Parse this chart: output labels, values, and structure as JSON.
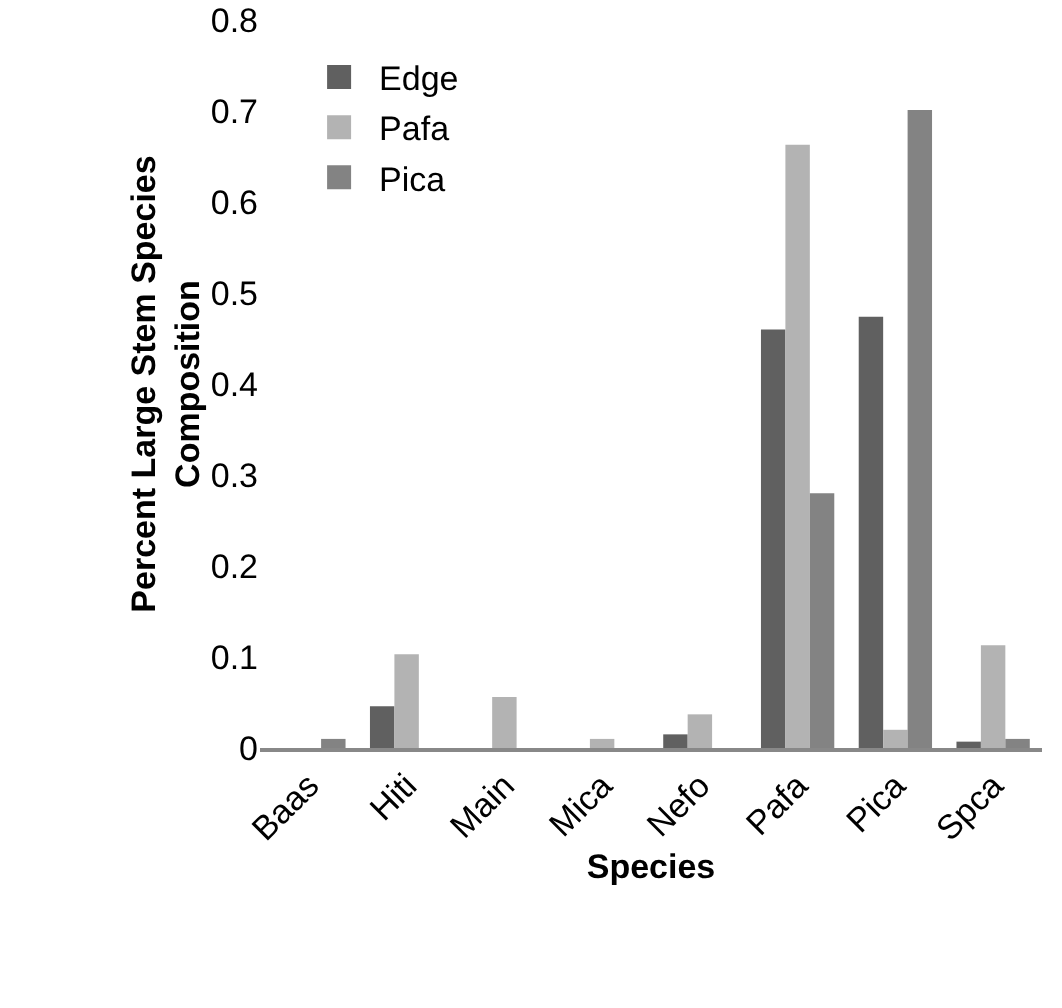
{
  "chart_data": {
    "type": "bar",
    "xlabel": "Species",
    "ylabel": "Percent Large Stem Species Composition",
    "categories": [
      "Baas",
      "Hiti",
      "Main",
      "Mica",
      "Nefo",
      "Pafa",
      "Pica",
      "Spca"
    ],
    "series": [
      {
        "name": "Edge",
        "color": "#606060",
        "values": [
          0,
          0.046,
          0,
          0,
          0.015,
          0.46,
          0.474,
          0.007
        ]
      },
      {
        "name": "Pafa",
        "color": "#b3b3b3",
        "values": [
          0,
          0.103,
          0.056,
          0.01,
          0.037,
          0.663,
          0.02,
          0.113
        ]
      },
      {
        "name": "Pica",
        "color": "#838383",
        "values": [
          0.01,
          0,
          0,
          0,
          0,
          0.28,
          0.701,
          0.01
        ]
      }
    ],
    "ylim": [
      0,
      0.8
    ],
    "yticks": [
      0,
      0.1,
      0.2,
      0.3,
      0.4,
      0.5,
      0.6,
      0.7,
      0.8
    ],
    "grid": false,
    "legend": "top left"
  }
}
